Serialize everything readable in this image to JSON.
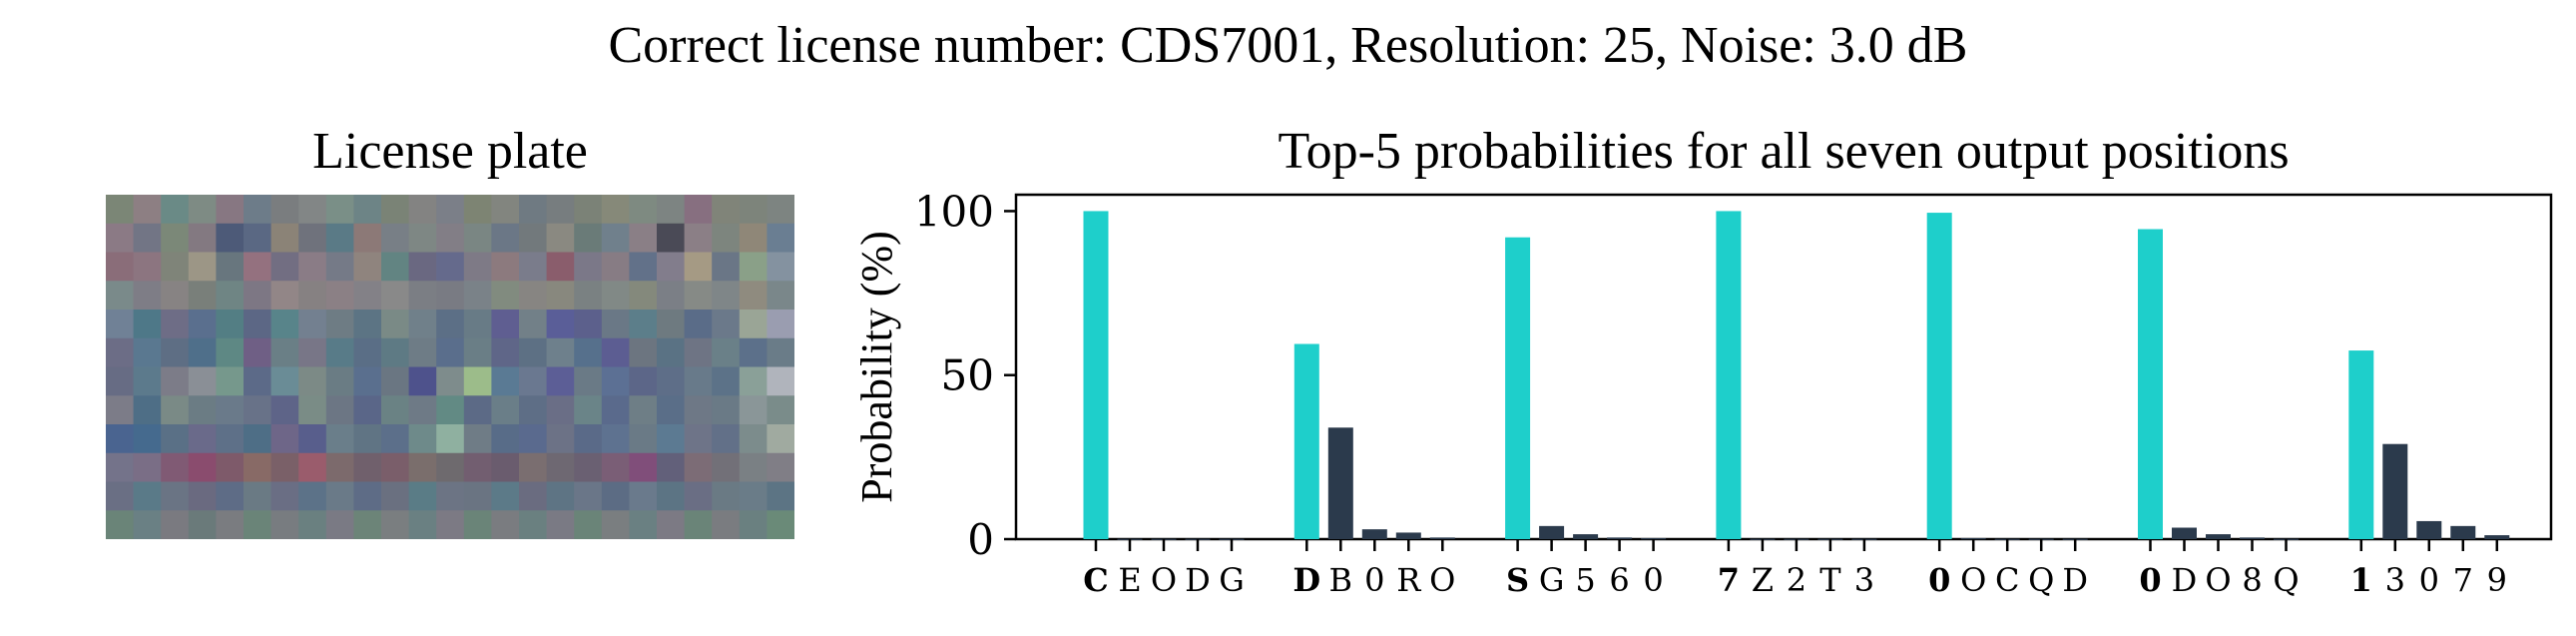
{
  "suptitle": "Correct license number: CDS7001, Resolution: 25, Noise: 3.0 dB",
  "plate": {
    "title": "License plate",
    "cols": 25,
    "rows": 12,
    "rows_colors": [
      [
        "#7b8676",
        "#8d7f83",
        "#6a8a86",
        "#7e8b84",
        "#877782",
        "#6d7c89",
        "#7a7d7f",
        "#828686",
        "#7a8f87",
        "#6d8486",
        "#7a8376",
        "#838382",
        "#7b7f88",
        "#7d8473",
        "#82857f",
        "#6f7a82",
        "#777d7f",
        "#7b8277",
        "#868979",
        "#7e8a81",
        "#7d8482",
        "#876f80",
        "#808479",
        "#7d847b",
        "#7d8481"
      ],
      [
        "#8b7a85",
        "#727585",
        "#7b8878",
        "#837981",
        "#4d5a78",
        "#5a6883",
        "#8b8377",
        "#6f727c",
        "#5a7a86",
        "#8c7977",
        "#787f86",
        "#7e8784",
        "#827e86",
        "#7a8683",
        "#6b7786",
        "#72797c",
        "#8a8981",
        "#6a7b78",
        "#70808c",
        "#8a7f86",
        "#4a4a56",
        "#8b7f86",
        "#7d857e",
        "#8f8778",
        "#6a7e92"
      ],
      [
        "#8a6d79",
        "#8c7580",
        "#7f8479",
        "#9c9686",
        "#68767e",
        "#94717f",
        "#726e82",
        "#8a7c86",
        "#757a87",
        "#8f847e",
        "#628482",
        "#6a6881",
        "#656a8c",
        "#7e7a86",
        "#8c7a7e",
        "#7a7c8b",
        "#8a5d6c",
        "#7b7888",
        "#877c84",
        "#627189",
        "#827d8c",
        "#a59a84",
        "#6a7686",
        "#8aa088",
        "#8492a0"
      ],
      [
        "#7a8a8a",
        "#7e7d86",
        "#878383",
        "#797f7a",
        "#6f8584",
        "#7d7784",
        "#928687",
        "#868182",
        "#8b8085",
        "#838187",
        "#898989",
        "#7b7e84",
        "#797b83",
        "#7a8288",
        "#818b7f",
        "#878582",
        "#88887e",
        "#7a8182",
        "#818986",
        "#84897c",
        "#7b7f86",
        "#868a86",
        "#7f8688",
        "#8f8b7f",
        "#7a878a"
      ],
      [
        "#708196",
        "#4e7888",
        "#6e6d86",
        "#5a6f8e",
        "#537e84",
        "#5c6785",
        "#58848a",
        "#738090",
        "#6e7c84",
        "#5c7484",
        "#7a8a86",
        "#70808a",
        "#5c6f86",
        "#687b86",
        "#5f5e91",
        "#728088",
        "#5a5e98",
        "#5c608c",
        "#6a7886",
        "#5c7e8a",
        "#6e7a80",
        "#5a6c88",
        "#6b798a",
        "#9aa596",
        "#9a9db0"
      ],
      [
        "#6c6d86",
        "#5a7890",
        "#5e6e84",
        "#4f6f8a",
        "#5e8884",
        "#6f5f85",
        "#6a7f86",
        "#787687",
        "#587b88",
        "#5a6e86",
        "#5e7a84",
        "#6e7c86",
        "#5a6e8c",
        "#6a7e86",
        "#5f6688",
        "#5d7084",
        "#6e808c",
        "#56708c",
        "#5c5d92",
        "#6c7580",
        "#5a7284",
        "#6e7484",
        "#6a8088",
        "#5c708a",
        "#6a7c88"
      ],
      [
        "#676c84",
        "#5c7a8c",
        "#7c7c88",
        "#8a8f96",
        "#76988c",
        "#5c6a88",
        "#6a8c96",
        "#7c8a86",
        "#6a7c84",
        "#5a6f8e",
        "#6a7682",
        "#4e528c",
        "#7e8c8c",
        "#9cbc8a",
        "#5a7a94",
        "#6a7890",
        "#5c5e96",
        "#6a7a86",
        "#5c7094",
        "#5c6688",
        "#5e6e88",
        "#687a8a",
        "#5c7288",
        "#8aa098",
        "#b0b4bc"
      ],
      [
        "#7c7c88",
        "#4e6e86",
        "#7a8a86",
        "#6b7c84",
        "#6a7a8a",
        "#687288",
        "#5e6488",
        "#7a8c86",
        "#6c7684",
        "#5a6688",
        "#6a8284",
        "#6e7a86",
        "#628a84",
        "#5c6a86",
        "#6a7e88",
        "#5e6e86",
        "#6a6e86",
        "#6a8488",
        "#5a6a8c",
        "#6e7e86",
        "#5a6e88",
        "#6e7886",
        "#6a7a86",
        "#8a9698",
        "#7a8c8a"
      ],
      [
        "#4a6490",
        "#456a8e",
        "#5a7086",
        "#6a6a8a",
        "#5e7088",
        "#4e6e86",
        "#6e6688",
        "#585e8c",
        "#6a7e8a",
        "#607484",
        "#5c6f8a",
        "#6e8a8a",
        "#8fb0a0",
        "#6f7c86",
        "#586c88",
        "#5a6a8e",
        "#6c7286",
        "#5a6a88",
        "#5e7290",
        "#6a7a86",
        "#5c7a92",
        "#6e7488",
        "#627088",
        "#7c8c8c",
        "#a0aaa0"
      ],
      [
        "#74738a",
        "#7a6e86",
        "#805a74",
        "#8a4c6e",
        "#7e5a6a",
        "#886a66",
        "#7a6068",
        "#9a5c6c",
        "#7c6a6c",
        "#70606c",
        "#7a5e6a",
        "#7a6e6c",
        "#6e6a6e",
        "#725e70",
        "#6a5c6e",
        "#7a6e70",
        "#6e6872",
        "#6a6072",
        "#7a5e76",
        "#804e7a",
        "#62607a",
        "#7c6c76",
        "#727078",
        "#7a8084",
        "#807e86"
      ],
      [
        "#6a6f84",
        "#5a7a88",
        "#6a7484",
        "#6a6a80",
        "#5e6c86",
        "#6a7a84",
        "#6a6e84",
        "#5c7288",
        "#6a7a88",
        "#5e6c86",
        "#6a7080",
        "#5a7c86",
        "#6c7484",
        "#6a7482",
        "#5c7a88",
        "#6a6c80",
        "#5e7484",
        "#6a7688",
        "#5c6c84",
        "#6a7a8c",
        "#5c7484",
        "#6a6e84",
        "#6a7a84",
        "#6a7c88",
        "#5c7484"
      ],
      [
        "#6a8478",
        "#6a8084",
        "#7a7a80",
        "#6a7a7a",
        "#7a7c80",
        "#6a8478",
        "#787c80",
        "#6a8080",
        "#7a7a84",
        "#6c8478",
        "#7a7e80",
        "#6a8082",
        "#7c7a84",
        "#6a8478",
        "#7a7c80",
        "#6a8080",
        "#7a7a84",
        "#6a8478",
        "#7a7e80",
        "#6a8082",
        "#7c7a84",
        "#6a8478",
        "#7a7c80",
        "#6a8080",
        "#6a8a78"
      ]
    ]
  },
  "chart": {
    "title": "Top-5 probabilities for all seven output positions",
    "ylabel": "Probability (%)",
    "colors": {
      "correct": "#1ecfcb",
      "other": "#2b3a4c"
    }
  },
  "chart_data": {
    "type": "bar",
    "title": "Top-5 probabilities for all seven output positions",
    "xlabel": "",
    "ylabel": "Probability (%)",
    "ylim": [
      0,
      105
    ],
    "yticks": [
      0,
      50,
      100
    ],
    "groups": [
      {
        "position": 1,
        "labels": [
          "C",
          "E",
          "O",
          "D",
          "G"
        ],
        "values": [
          100.0,
          0.1,
          0.1,
          0.1,
          0.1
        ]
      },
      {
        "position": 2,
        "labels": [
          "D",
          "B",
          "0",
          "R",
          "O"
        ],
        "values": [
          59.5,
          34.0,
          3.0,
          2.0,
          0.5
        ]
      },
      {
        "position": 3,
        "labels": [
          "S",
          "G",
          "5",
          "6",
          "0"
        ],
        "values": [
          92.0,
          4.0,
          1.5,
          0.5,
          0.3
        ]
      },
      {
        "position": 4,
        "labels": [
          "7",
          "Z",
          "2",
          "T",
          "3"
        ],
        "values": [
          100.0,
          0.1,
          0.1,
          0.1,
          0.1
        ]
      },
      {
        "position": 5,
        "labels": [
          "0",
          "O",
          "C",
          "Q",
          "D"
        ],
        "values": [
          99.5,
          0.3,
          0.1,
          0.1,
          0.1
        ]
      },
      {
        "position": 6,
        "labels": [
          "0",
          "D",
          "O",
          "8",
          "Q"
        ],
        "values": [
          94.5,
          3.5,
          1.5,
          0.5,
          0.1
        ]
      },
      {
        "position": 7,
        "labels": [
          "1",
          "3",
          "0",
          "7",
          "9"
        ],
        "values": [
          57.5,
          29.0,
          5.5,
          4.0,
          1.2
        ]
      }
    ]
  }
}
